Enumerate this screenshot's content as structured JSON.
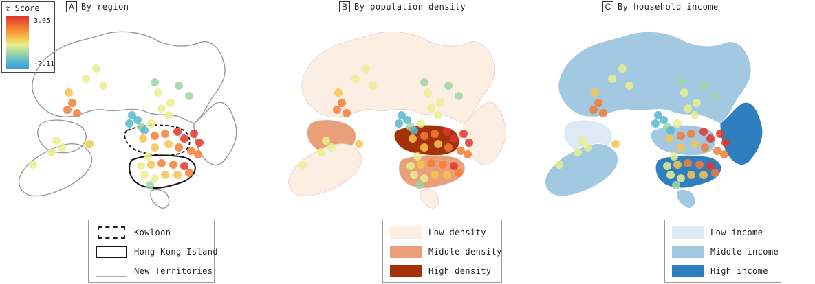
{
  "colorbar": {
    "symbol": "z",
    "title": "Score",
    "max": "3.05",
    "min": "-2.11",
    "colors": [
      "#e2362c",
      "#f57d35",
      "#f7c44c",
      "#e9ef8f",
      "#9fd6a3",
      "#58b7cf",
      "#3a9ed9"
    ]
  },
  "panels": [
    {
      "letter": "A",
      "title": "By region",
      "legend": [
        {
          "label": "Kowloon",
          "style": "dashed",
          "color": "#222222"
        },
        {
          "label": "Hong Kong Island",
          "style": "solid-thick",
          "color": "#111111"
        },
        {
          "label": "New Territories",
          "style": "solid-thin",
          "color": "#aaaaaa"
        }
      ]
    },
    {
      "letter": "B",
      "title": "By population density",
      "legend": [
        {
          "label": "Low density",
          "color": "#fdeee4"
        },
        {
          "label": "Middle density",
          "color": "#e9a07a"
        },
        {
          "label": "High density",
          "color": "#a4310a"
        }
      ]
    },
    {
      "letter": "C",
      "title": "By household income",
      "legend": [
        {
          "label": "Low income",
          "color": "#dde9f5"
        },
        {
          "label": "Middle income",
          "color": "#a3c9e2"
        },
        {
          "label": "High income",
          "color": "#2f7fbf"
        }
      ]
    }
  ]
}
